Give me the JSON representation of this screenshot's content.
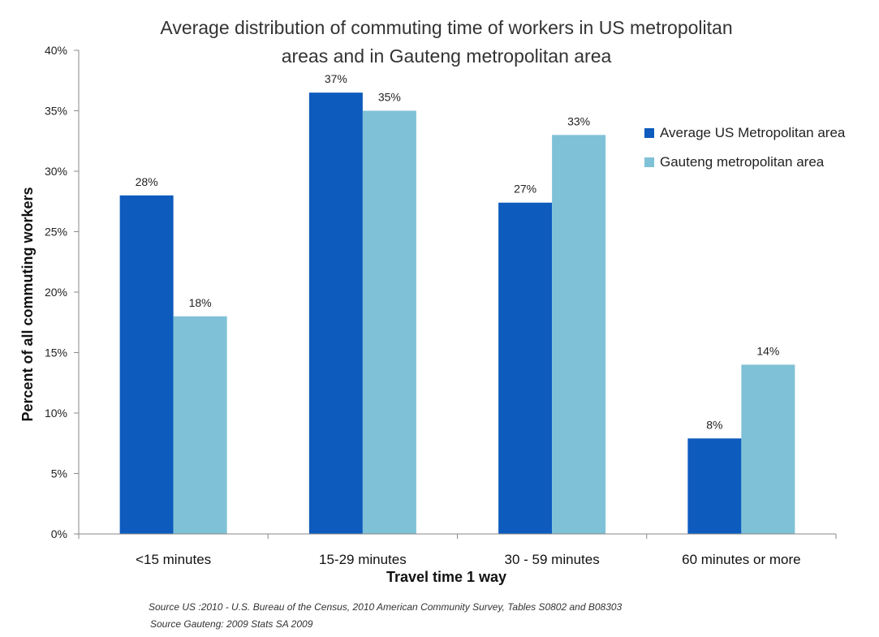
{
  "chart_data": {
    "type": "bar",
    "title_lines": [
      "Average distribution of commuting time of workers in US metropolitan",
      "areas and in Gauteng metropolitan area"
    ],
    "xlabel": "Travel time 1 way",
    "ylabel": "Percent of all commuting workers",
    "ylim": [
      0,
      40
    ],
    "yticks": [
      "0%",
      "5%",
      "10%",
      "15%",
      "20%",
      "25%",
      "30%",
      "35%",
      "40%"
    ],
    "categories": [
      "<15 minutes",
      "15-29 minutes",
      "30 - 59 minutes",
      "60 minutes or more"
    ],
    "series": [
      {
        "name": "Average US Metropolitan area",
        "color": "#0d5bbd",
        "values": [
          28,
          36.5,
          27.4,
          7.9
        ],
        "labels": [
          "28%",
          "37%",
          "27%",
          "8%"
        ]
      },
      {
        "name": "Gauteng metropolitan area",
        "color": "#7fc1d6",
        "values": [
          18,
          35,
          33,
          14
        ],
        "labels": [
          "18%",
          "35%",
          "33%",
          "14%"
        ]
      }
    ],
    "legend_position": "right",
    "grid": false
  },
  "source_lines": [
    "Source US :2010 - U.S. Bureau of the Census, 2010 American Community Survey, Tables S0802 and B08303",
    "Source Gauteng: 2009 Stats SA 2009"
  ]
}
